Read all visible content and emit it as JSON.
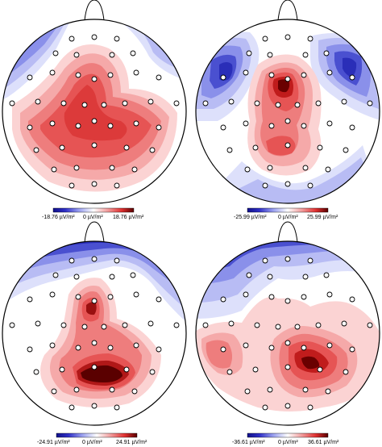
{
  "maps": [
    {
      "colorbar": {
        "min_label": "-18.76 µV/m²",
        "zero_label": "0 µV/m²",
        "max_label": "18.76 µV/m²"
      },
      "range": 18.76
    },
    {
      "colorbar": {
        "min_label": "-25.99 µV/m²",
        "zero_label": "0 µV/m²",
        "max_label": "25.99 µV/m²"
      },
      "range": 25.99
    },
    {
      "colorbar": {
        "min_label": "-24.91 µV/m²",
        "zero_label": "0 µV/m²",
        "max_label": "24.91 µV/m²"
      },
      "range": 24.91
    },
    {
      "colorbar": {
        "min_label": "-36.61 µV/m²",
        "zero_label": "0 µV/m²",
        "max_label": "36.61 µV/m²"
      },
      "range": 36.61
    }
  ],
  "colors": {
    "negative_max": "#1a1aa0",
    "neutral": "#ffffff",
    "positive_max": "#5a0000",
    "outline": "#000000"
  }
}
